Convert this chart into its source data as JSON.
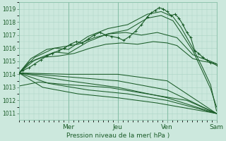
{
  "xlabel": "Pression niveau de la mer( hPa )",
  "ylim": [
    1010.5,
    1019.5
  ],
  "xlim": [
    0,
    1.0
  ],
  "yticks": [
    1011,
    1012,
    1013,
    1014,
    1015,
    1016,
    1017,
    1018,
    1019
  ],
  "day_labels": [
    "Mer",
    "Jeu",
    "Ven",
    "Sam"
  ],
  "day_positions": [
    0.25,
    0.5,
    0.75,
    1.0
  ],
  "bg_color": "#cce8dd",
  "grid_color": "#aad4c4",
  "line_color": "#1a5c28",
  "lines": [
    {
      "x": [
        0.0,
        0.02,
        0.05,
        0.08,
        0.11,
        0.14,
        0.17,
        0.2,
        0.23,
        0.26,
        0.29,
        0.32,
        0.35,
        0.38,
        0.41,
        0.44,
        0.47,
        0.5,
        0.53,
        0.56,
        0.59,
        0.62,
        0.65,
        0.67,
        0.69,
        0.71,
        0.73,
        0.75,
        0.77,
        0.79,
        0.81,
        0.83,
        0.85,
        0.87,
        0.89,
        0.91,
        0.93,
        0.95,
        0.97,
        1.0
      ],
      "y": [
        1014.1,
        1014.3,
        1014.5,
        1014.8,
        1015.1,
        1015.4,
        1015.6,
        1015.8,
        1016.0,
        1016.3,
        1016.5,
        1016.4,
        1016.7,
        1017.0,
        1017.2,
        1017.0,
        1016.9,
        1016.8,
        1016.6,
        1016.9,
        1017.3,
        1017.8,
        1018.4,
        1018.7,
        1018.9,
        1019.1,
        1019.0,
        1018.8,
        1018.5,
        1018.6,
        1018.3,
        1017.8,
        1017.2,
        1016.8,
        1015.8,
        1015.6,
        1015.3,
        1015.1,
        1014.9,
        1014.7
      ],
      "markers": true
    },
    {
      "x": [
        0.0,
        0.08,
        0.18,
        0.25,
        0.35,
        0.45,
        0.55,
        0.65,
        0.72,
        0.78,
        0.82,
        0.88,
        0.93,
        0.97,
        1.0
      ],
      "y": [
        1014.1,
        1015.3,
        1016.0,
        1015.9,
        1016.9,
        1017.5,
        1017.8,
        1018.6,
        1018.8,
        1018.4,
        1017.6,
        1016.0,
        1014.5,
        1013.2,
        1011.2
      ],
      "markers": false
    },
    {
      "x": [
        0.0,
        0.08,
        0.18,
        0.25,
        0.35,
        0.45,
        0.55,
        0.65,
        0.72,
        0.78,
        0.82,
        0.88,
        0.93,
        0.97,
        1.0
      ],
      "y": [
        1014.1,
        1015.1,
        1015.7,
        1015.6,
        1016.5,
        1017.1,
        1017.4,
        1018.3,
        1018.5,
        1018.1,
        1017.2,
        1015.8,
        1014.2,
        1012.9,
        1011.5
      ],
      "markers": false
    },
    {
      "x": [
        0.0,
        0.06,
        0.14,
        0.22,
        0.3,
        0.38,
        0.46,
        0.54,
        0.62,
        0.7,
        0.75,
        0.8,
        0.88,
        0.93,
        0.97,
        1.0
      ],
      "y": [
        1014.1,
        1015.2,
        1015.9,
        1016.1,
        1016.3,
        1016.8,
        1017.1,
        1017.2,
        1017.0,
        1017.2,
        1017.0,
        1016.8,
        1015.5,
        1015.2,
        1015.0,
        1014.8
      ],
      "markers": false
    },
    {
      "x": [
        0.0,
        0.05,
        0.12,
        0.2,
        0.28,
        0.36,
        0.44,
        0.52,
        0.6,
        0.68,
        0.75,
        0.8,
        0.88,
        0.93,
        0.97,
        1.0
      ],
      "y": [
        1014.1,
        1014.9,
        1015.3,
        1015.4,
        1015.6,
        1016.0,
        1016.3,
        1016.4,
        1016.3,
        1016.5,
        1016.4,
        1016.2,
        1015.2,
        1015.0,
        1014.9,
        1014.8
      ],
      "markers": false
    },
    {
      "x": [
        0.0,
        0.25,
        0.5,
        0.75,
        1.0
      ],
      "y": [
        1014.1,
        1014.0,
        1014.0,
        1013.5,
        1011.0
      ],
      "markers": false
    },
    {
      "x": [
        0.0,
        0.25,
        0.5,
        0.75,
        1.0
      ],
      "y": [
        1014.1,
        1013.8,
        1013.5,
        1012.8,
        1011.0
      ],
      "markers": false
    },
    {
      "x": [
        0.0,
        0.25,
        0.5,
        0.75,
        1.0
      ],
      "y": [
        1014.1,
        1013.5,
        1013.0,
        1012.2,
        1011.0
      ],
      "markers": false
    },
    {
      "x": [
        0.0,
        0.15,
        0.35,
        0.55,
        0.75,
        1.0
      ],
      "y": [
        1014.1,
        1013.3,
        1012.8,
        1012.5,
        1012.0,
        1011.0
      ],
      "markers": false
    },
    {
      "x": [
        0.0,
        0.12,
        0.3,
        0.5,
        0.7,
        1.0
      ],
      "y": [
        1014.1,
        1013.0,
        1012.5,
        1012.2,
        1011.8,
        1011.0
      ],
      "markers": false
    },
    {
      "x": [
        0.0,
        0.1,
        0.25,
        0.45,
        0.65,
        0.85,
        1.0
      ],
      "y": [
        1013.1,
        1013.4,
        1013.2,
        1013.0,
        1012.5,
        1012.0,
        1011.0
      ],
      "markers": false
    }
  ]
}
